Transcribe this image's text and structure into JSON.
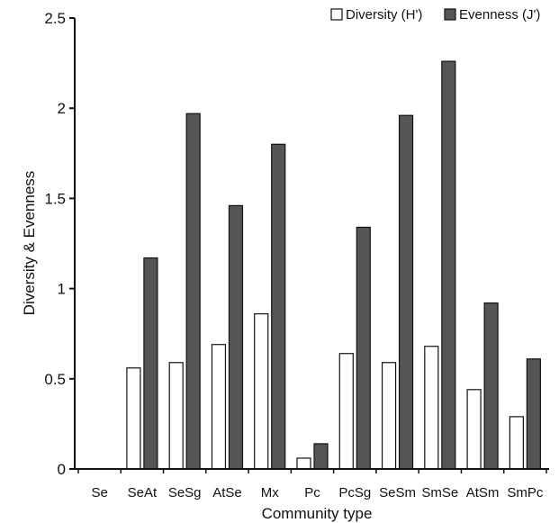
{
  "chart_data": {
    "type": "bar",
    "title": "",
    "xlabel": "Community type",
    "ylabel": "Diversity & Evenness",
    "ylim": [
      0,
      2.5
    ],
    "yticks": [
      "0",
      "0.5",
      "1",
      "1.5",
      "2",
      "2.5"
    ],
    "ytick_values": [
      0,
      0.5,
      1,
      1.5,
      2,
      2.5
    ],
    "grid": false,
    "legend_position": "top-right",
    "categories": [
      "Se",
      "SeAt",
      "SeSg",
      "AtSe",
      "Mx",
      "Pc",
      "PcSg",
      "SeSm",
      "SmSe",
      "AtSm",
      "SmPc"
    ],
    "series": [
      {
        "name": "Diversity (H')",
        "color": "#ffffff",
        "values": [
          0,
          0.56,
          0.59,
          0.69,
          0.86,
          0.06,
          0.64,
          0.59,
          0.68,
          0.44,
          0.29
        ]
      },
      {
        "name": "Evenness (J')",
        "color": "#555555",
        "values": [
          0,
          1.17,
          1.97,
          1.46,
          1.8,
          0.14,
          1.34,
          1.96,
          2.26,
          0.92,
          0.61
        ]
      }
    ]
  }
}
